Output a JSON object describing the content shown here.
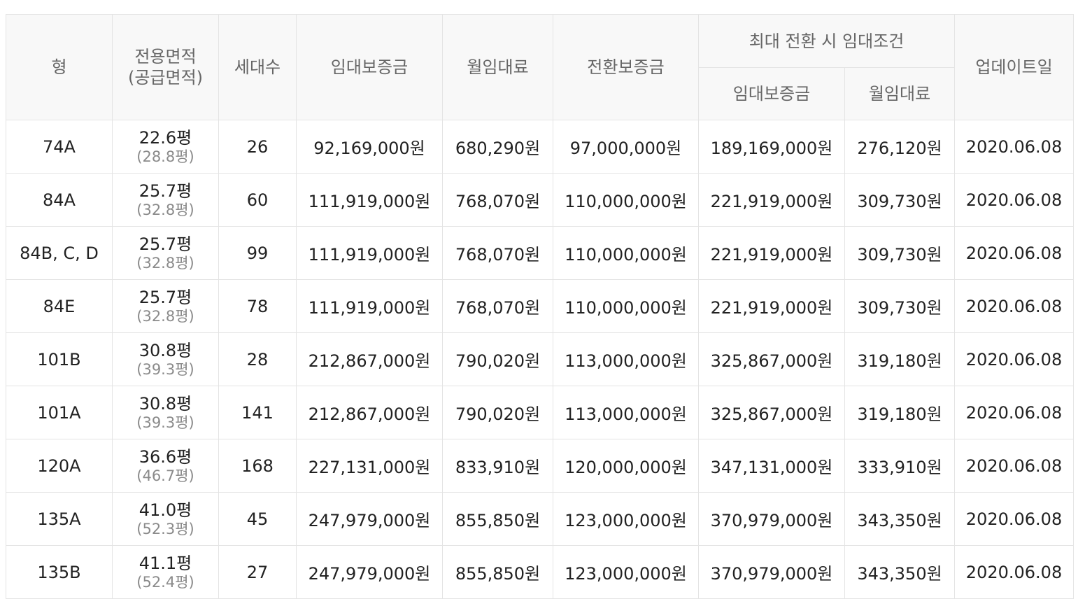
{
  "header": {
    "type": "형",
    "area_line1": "전용면적",
    "area_line2": "(공급면적)",
    "households": "세대수",
    "deposit": "임대보증금",
    "rent": "월임대료",
    "conversion_deposit": "전환보증금",
    "max_conversion_group": "최대 전환 시 임대조건",
    "max_deposit": "임대보증금",
    "max_rent": "월임대료",
    "updated": "업데이트일"
  },
  "rows": [
    {
      "type": "74A",
      "exclusive": "22.6평",
      "supply": "(28.8평)",
      "households": "26",
      "deposit": "92,169,000원",
      "rent": "680,290원",
      "conversion": "97,000,000원",
      "max_deposit": "189,169,000원",
      "max_rent": "276,120원",
      "updated": "2020.06.08"
    },
    {
      "type": "84A",
      "exclusive": "25.7평",
      "supply": "(32.8평)",
      "households": "60",
      "deposit": "111,919,000원",
      "rent": "768,070원",
      "conversion": "110,000,000원",
      "max_deposit": "221,919,000원",
      "max_rent": "309,730원",
      "updated": "2020.06.08"
    },
    {
      "type": "84B, C, D",
      "exclusive": "25.7평",
      "supply": "(32.8평)",
      "households": "99",
      "deposit": "111,919,000원",
      "rent": "768,070원",
      "conversion": "110,000,000원",
      "max_deposit": "221,919,000원",
      "max_rent": "309,730원",
      "updated": "2020.06.08"
    },
    {
      "type": "84E",
      "exclusive": "25.7평",
      "supply": "(32.8평)",
      "households": "78",
      "deposit": "111,919,000원",
      "rent": "768,070원",
      "conversion": "110,000,000원",
      "max_deposit": "221,919,000원",
      "max_rent": "309,730원",
      "updated": "2020.06.08"
    },
    {
      "type": "101B",
      "exclusive": "30.8평",
      "supply": "(39.3평)",
      "households": "28",
      "deposit": "212,867,000원",
      "rent": "790,020원",
      "conversion": "113,000,000원",
      "max_deposit": "325,867,000원",
      "max_rent": "319,180원",
      "updated": "2020.06.08"
    },
    {
      "type": "101A",
      "exclusive": "30.8평",
      "supply": "(39.3평)",
      "households": "141",
      "deposit": "212,867,000원",
      "rent": "790,020원",
      "conversion": "113,000,000원",
      "max_deposit": "325,867,000원",
      "max_rent": "319,180원",
      "updated": "2020.06.08"
    },
    {
      "type": "120A",
      "exclusive": "36.6평",
      "supply": "(46.7평)",
      "households": "168",
      "deposit": "227,131,000원",
      "rent": "833,910원",
      "conversion": "120,000,000원",
      "max_deposit": "347,131,000원",
      "max_rent": "333,910원",
      "updated": "2020.06.08"
    },
    {
      "type": "135A",
      "exclusive": "41.0평",
      "supply": "(52.3평)",
      "households": "45",
      "deposit": "247,979,000원",
      "rent": "855,850원",
      "conversion": "123,000,000원",
      "max_deposit": "370,979,000원",
      "max_rent": "343,350원",
      "updated": "2020.06.08"
    },
    {
      "type": "135B",
      "exclusive": "41.1평",
      "supply": "(52.4평)",
      "households": "27",
      "deposit": "247,979,000원",
      "rent": "855,850원",
      "conversion": "123,000,000원",
      "max_deposit": "370,979,000원",
      "max_rent": "343,350원",
      "updated": "2020.06.08"
    }
  ]
}
